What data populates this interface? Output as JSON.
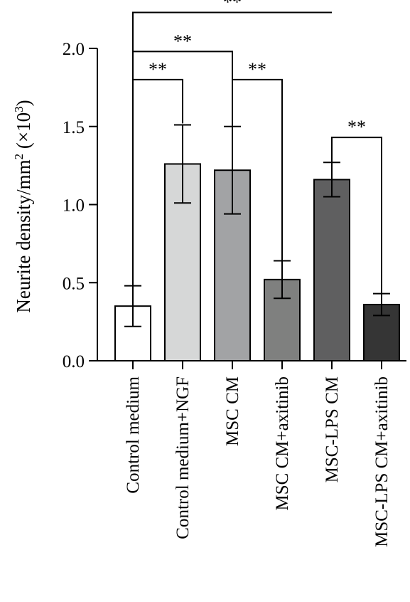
{
  "chart_data": {
    "type": "bar",
    "ylabel_main": "Neurite density/mm",
    "ylabel_sup1": "2",
    "ylabel_mid": " (×10",
    "ylabel_sup2": "3",
    "ylabel_end": ")",
    "ylim": [
      0,
      2.0
    ],
    "yticks": [
      "0.0",
      "0.5",
      "1.0",
      "1.5",
      "2.0"
    ],
    "ytick_values": [
      0,
      0.5,
      1.0,
      1.5,
      2.0
    ],
    "categories": [
      "Control medium",
      "Control medium+NGF",
      "MSC CM",
      "MSC CM+axitinib",
      "MSC-LPS CM",
      "MSC-LPS CM+axitinib"
    ],
    "values": [
      0.35,
      1.26,
      1.22,
      0.52,
      1.16,
      0.36
    ],
    "errors": [
      0.13,
      0.25,
      0.28,
      0.12,
      0.11,
      0.07
    ],
    "colors": [
      "#ffffff",
      "#d6d7d7",
      "#a2a3a5",
      "#7f807f",
      "#5f5f60",
      "#353535"
    ],
    "significance": [
      {
        "from": 0,
        "to": 1,
        "label": "**",
        "left_base": 0.48,
        "right_base": 1.52,
        "level": 1.8
      },
      {
        "from": 0,
        "to": 2,
        "label": "**",
        "left_base": 1.8,
        "right_base": 1.78,
        "level": 1.98
      },
      {
        "from": 0,
        "to": 4,
        "label": "**",
        "left_base": 1.98,
        "right_base": 2.23,
        "level": 2.23
      },
      {
        "from": 2,
        "to": 3,
        "label": "**",
        "left_base": 1.5,
        "right_base": 0.64,
        "level": 1.8
      },
      {
        "from": 4,
        "to": 5,
        "label": "**",
        "left_base": 1.27,
        "right_base": 0.43,
        "level": 1.43
      }
    ]
  }
}
